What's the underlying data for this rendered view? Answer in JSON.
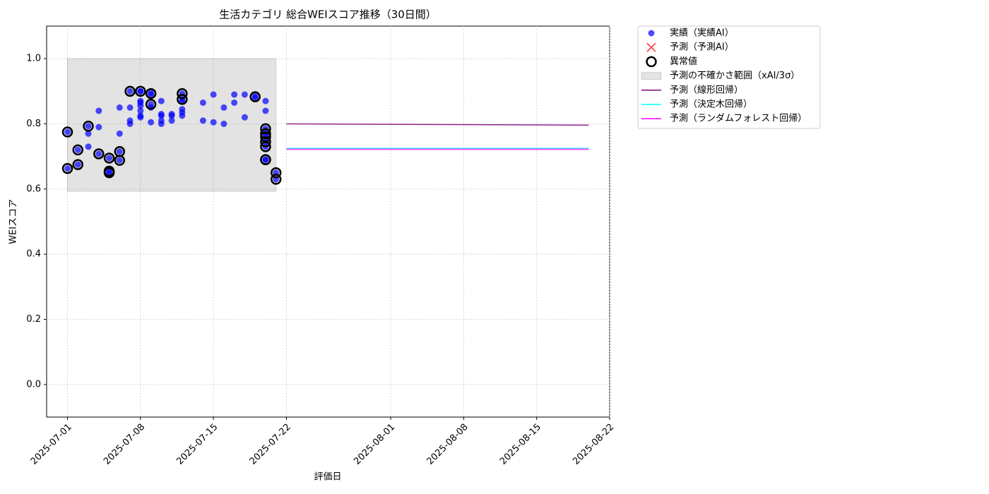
{
  "chart_data": {
    "type": "scatter",
    "title": "生活カテゴリ 総合WEIスコア推移（30日間）",
    "xlabel": "評価日",
    "ylabel": "WEIスコア",
    "xlim": [
      "2025-06-29",
      "2025-08-22"
    ],
    "xticks": [
      "2025-07-01",
      "2025-07-08",
      "2025-07-15",
      "2025-07-22",
      "2025-08-01",
      "2025-08-08",
      "2025-08-15",
      "2025-08-22"
    ],
    "ylim": [
      -0.1,
      1.1
    ],
    "yticks": [
      {
        "value": 0,
        "label": "0.0"
      },
      0.2,
      0.4,
      0.6,
      0.8,
      {
        "value": 1,
        "label": "1.0"
      }
    ],
    "grid": true,
    "legend": "outside upper right",
    "series": [
      {
        "name": "実績（実績AI）",
        "kind": "scatter",
        "marker": "dot",
        "color": "#0000ff",
        "x": [
          "2025-07-01",
          "2025-07-01",
          "2025-07-02",
          "2025-07-02",
          "2025-07-03",
          "2025-07-03",
          "2025-07-03",
          "2025-07-04",
          "2025-07-04",
          "2025-07-04",
          "2025-07-05",
          "2025-07-05",
          "2025-07-05",
          "2025-07-06",
          "2025-07-06",
          "2025-07-06",
          "2025-07-06",
          "2025-07-07",
          "2025-07-07",
          "2025-07-07",
          "2025-07-07",
          "2025-07-08",
          "2025-07-08",
          "2025-07-08",
          "2025-07-08",
          "2025-07-08",
          "2025-07-08",
          "2025-07-08",
          "2025-07-08",
          "2025-07-09",
          "2025-07-09",
          "2025-07-09",
          "2025-07-09",
          "2025-07-09",
          "2025-07-10",
          "2025-07-10",
          "2025-07-10",
          "2025-07-10",
          "2025-07-10",
          "2025-07-11",
          "2025-07-11",
          "2025-07-11",
          "2025-07-12",
          "2025-07-12",
          "2025-07-12",
          "2025-07-12",
          "2025-07-12",
          "2025-07-12",
          "2025-07-14",
          "2025-07-14",
          "2025-07-15",
          "2025-07-15",
          "2025-07-16",
          "2025-07-16",
          "2025-07-17",
          "2025-07-17",
          "2025-07-18",
          "2025-07-18",
          "2025-07-19",
          "2025-07-19",
          "2025-07-20",
          "2025-07-20",
          "2025-07-20",
          "2025-07-20",
          "2025-07-20",
          "2025-07-20",
          "2025-07-20",
          "2025-07-20",
          "2025-07-20",
          "2025-07-21",
          "2025-07-21"
        ],
        "values": [
          0.775,
          0.663,
          0.72,
          0.675,
          0.77,
          0.793,
          0.73,
          0.79,
          0.84,
          0.708,
          0.695,
          0.655,
          0.65,
          0.77,
          0.715,
          0.688,
          0.85,
          0.81,
          0.8,
          0.9,
          0.85,
          0.84,
          0.865,
          0.9,
          0.9,
          0.855,
          0.87,
          0.82,
          0.825,
          0.86,
          0.805,
          0.895,
          0.85,
          0.89,
          0.87,
          0.825,
          0.81,
          0.8,
          0.83,
          0.81,
          0.825,
          0.83,
          0.893,
          0.87,
          0.875,
          0.825,
          0.845,
          0.835,
          0.865,
          0.81,
          0.89,
          0.805,
          0.85,
          0.8,
          0.89,
          0.865,
          0.89,
          0.82,
          0.885,
          0.88,
          0.87,
          0.84,
          0.785,
          0.77,
          0.76,
          0.745,
          0.69,
          0.73,
          0.69,
          0.65,
          0.63
        ]
      },
      {
        "name": "予測（予測AI）",
        "kind": "scatter",
        "marker": "x",
        "color": "#ff0000",
        "x": [],
        "values": []
      },
      {
        "name": "異常値",
        "kind": "scatter",
        "marker": "ring",
        "color": "#000000",
        "x": [
          "2025-07-01",
          "2025-07-01",
          "2025-07-02",
          "2025-07-02",
          "2025-07-03",
          "2025-07-04",
          "2025-07-05",
          "2025-07-05",
          "2025-07-05",
          "2025-07-06",
          "2025-07-06",
          "2025-07-07",
          "2025-07-08",
          "2025-07-09",
          "2025-07-09",
          "2025-07-12",
          "2025-07-12",
          "2025-07-19",
          "2025-07-20",
          "2025-07-20",
          "2025-07-20",
          "2025-07-20",
          "2025-07-20",
          "2025-07-20",
          "2025-07-20",
          "2025-07-21",
          "2025-07-21"
        ],
        "values": [
          0.775,
          0.663,
          0.72,
          0.675,
          0.793,
          0.708,
          0.695,
          0.655,
          0.65,
          0.715,
          0.688,
          0.9,
          0.9,
          0.86,
          0.893,
          0.893,
          0.875,
          0.883,
          0.785,
          0.77,
          0.76,
          0.745,
          0.69,
          0.73,
          0.69,
          0.65,
          0.63
        ]
      },
      {
        "name": "予測の不確かさ範囲（xAI/3σ）",
        "kind": "band",
        "color": "#808080",
        "x": [
          "2025-07-01",
          "2025-07-21"
        ],
        "lower": [
          0.593,
          0.593
        ],
        "upper": [
          1.0,
          1.0
        ]
      },
      {
        "name": "予測（線形回帰）",
        "kind": "line",
        "color": "#800080",
        "x": [
          "2025-07-22",
          "2025-08-20"
        ],
        "values": [
          0.8,
          0.796
        ]
      },
      {
        "name": "予測（決定木回帰）",
        "kind": "line",
        "color": "#00ffff",
        "x": [
          "2025-07-22",
          "2025-08-20"
        ],
        "values": [
          0.725,
          0.725
        ]
      },
      {
        "name": "予測（ランダムフォレスト回帰）",
        "kind": "line",
        "color": "#ff00ff",
        "x": [
          "2025-07-22",
          "2025-08-20"
        ],
        "values": [
          0.722,
          0.722
        ]
      }
    ]
  }
}
